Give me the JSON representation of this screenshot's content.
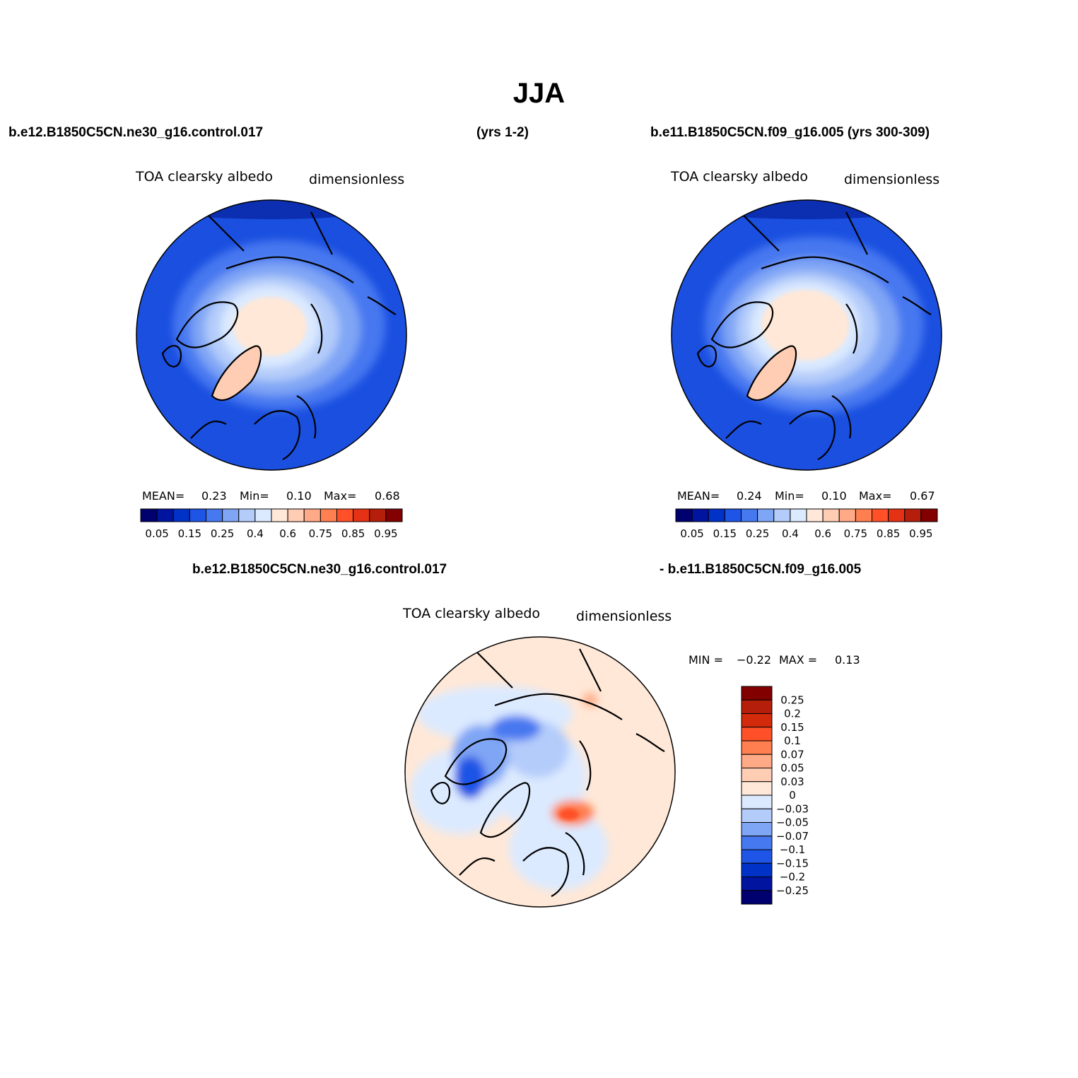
{
  "title": "JJA",
  "headers": {
    "top_left": "b.e12.B1850C5CN.ne30_g16.control.017",
    "top_mid": "(yrs 1-2)",
    "top_right": "b.e11.B1850C5CN.f09_g16.005 (yrs 300-309)",
    "bottom_left": "b.e12.B1850C5CN.ne30_g16.control.017",
    "bottom_right": "- b.e11.B1850C5CN.f09_g16.005"
  },
  "panels": [
    {
      "variable": "TOA clearsky albedo",
      "units": "dimensionless",
      "stats": {
        "mean_label": "MEAN=",
        "mean": "0.23",
        "min_label": "Min=",
        "min": "0.10",
        "max_label": "Max=",
        "max": "0.68"
      }
    },
    {
      "variable": "TOA clearsky albedo",
      "units": "dimensionless",
      "stats": {
        "mean_label": "MEAN=",
        "mean": "0.24",
        "min_label": "Min=",
        "min": "0.10",
        "max_label": "Max=",
        "max": "0.67"
      }
    }
  ],
  "diff_panel": {
    "variable": "TOA clearsky albedo",
    "units": "dimensionless",
    "min_label": "MIN =",
    "min": "−0.22",
    "max_label": "MAX =",
    "max": "0.13"
  },
  "colorbar_main": {
    "labels": [
      "0.05",
      "0.15",
      "0.25",
      "0.4",
      "0.6",
      "0.75",
      "0.85",
      "0.95"
    ],
    "colors": [
      "#00006e",
      "#0014a0",
      "#0032c8",
      "#1e55e6",
      "#4678f0",
      "#7fa5f5",
      "#b4ccfa",
      "#dceaff",
      "#ffe8d7",
      "#ffcdb4",
      "#ffaa87",
      "#ff7f50",
      "#ff5028",
      "#e63214",
      "#b41e0a",
      "#820000"
    ]
  },
  "colorbar_diff": {
    "labels": [
      "0.25",
      "0.2",
      "0.15",
      "0.1",
      "0.07",
      "0.05",
      "0.03",
      "0",
      "−0.03",
      "−0.05",
      "−0.07",
      "−0.1",
      "−0.15",
      "−0.2",
      "−0.25"
    ],
    "colors": [
      "#820000",
      "#b41e0a",
      "#d42a0c",
      "#ff5028",
      "#ff7f50",
      "#ffaa87",
      "#ffcdb4",
      "#ffe8d7",
      "#dceaff",
      "#b4ccfa",
      "#7fa5f5",
      "#4678f0",
      "#1e55e6",
      "#0032c8",
      "#0014a0",
      "#00006e"
    ]
  },
  "colors": {
    "ocean": "#1a4fe0",
    "ice": "#ffe8d7",
    "greenland": "#ffcdb4",
    "outline": "#000000"
  }
}
